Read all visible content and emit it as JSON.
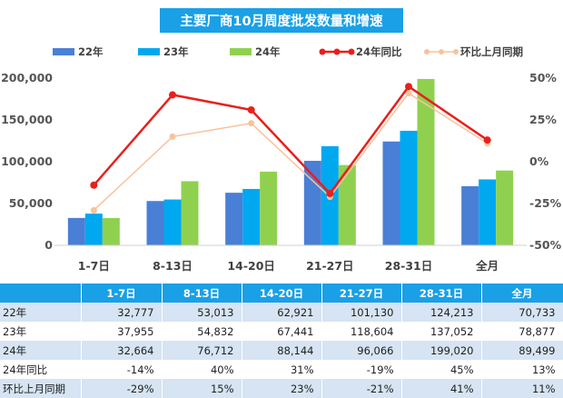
{
  "chart_data": {
    "type": "bar+line",
    "title": "主要厂商10月周度批发数量和增速",
    "categories": [
      "1-7日",
      "8-13日",
      "14-20日",
      "21-27日",
      "28-31日",
      "全月"
    ],
    "series": [
      {
        "name": "22年",
        "kind": "bar",
        "axis": "left",
        "color": "#4a7fd6",
        "values": [
          32777,
          53013,
          62921,
          101130,
          124213,
          70733
        ]
      },
      {
        "name": "23年",
        "kind": "bar",
        "axis": "left",
        "color": "#00a8f0",
        "values": [
          37955,
          54832,
          67441,
          118604,
          137052,
          78877
        ]
      },
      {
        "name": "24年",
        "kind": "bar",
        "axis": "left",
        "color": "#8fd14f",
        "values": [
          32664,
          76712,
          88144,
          96066,
          199020,
          89499
        ]
      },
      {
        "name": "24年同比",
        "kind": "line",
        "axis": "right",
        "color": "#e8201c",
        "values": [
          -14,
          40,
          31,
          -19,
          45,
          13
        ]
      },
      {
        "name": "环比上月同期",
        "kind": "line",
        "axis": "right",
        "color": "#f9c29b",
        "values": [
          -29,
          15,
          23,
          -21,
          41,
          11
        ]
      }
    ],
    "y_left": {
      "min": 0,
      "max": 200000,
      "ticks": [
        "0",
        "50,000",
        "100,000",
        "150,000",
        "200,000"
      ]
    },
    "y_right": {
      "min": -50,
      "max": 50,
      "ticks": [
        "-50%",
        "-25%",
        "0%",
        "25%",
        "50%"
      ]
    },
    "legend": "top",
    "grid": false
  },
  "table": {
    "headers": [
      "",
      "1-7日",
      "8-13日",
      "14-20日",
      "21-27日",
      "28-31日",
      "全月"
    ],
    "rows": [
      {
        "label": "22年",
        "cells": [
          "32,777",
          "53,013",
          "62,921",
          "101,130",
          "124,213",
          "70,733"
        ]
      },
      {
        "label": "23年",
        "cells": [
          "37,955",
          "54,832",
          "67,441",
          "118,604",
          "137,052",
          "78,877"
        ]
      },
      {
        "label": "24年",
        "cells": [
          "32,664",
          "76,712",
          "88,144",
          "96,066",
          "199,020",
          "89,499"
        ]
      },
      {
        "label": "24年同比",
        "cells": [
          "-14%",
          "40%",
          "31%",
          "-19%",
          "45%",
          "13%"
        ]
      },
      {
        "label": "环比上月同期",
        "cells": [
          "-29%",
          "15%",
          "23%",
          "-21%",
          "41%",
          "11%"
        ]
      }
    ]
  }
}
